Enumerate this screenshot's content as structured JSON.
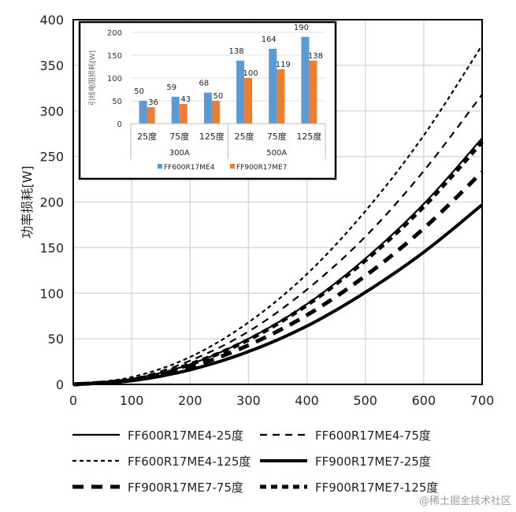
{
  "chart_data": [
    {
      "type": "line",
      "title": "",
      "xlabel": "",
      "ylabel": "功率损耗[W]",
      "xlim": [
        0,
        700
      ],
      "ylim": [
        0,
        400
      ],
      "xticks": [
        "0",
        "100",
        "200",
        "300",
        "400",
        "500",
        "600",
        "700"
      ],
      "yticks": [
        "0",
        "50",
        "100",
        "150",
        "200",
        "250",
        "300",
        "350",
        "400"
      ],
      "grid": true,
      "legend_position": "bottom",
      "x": [
        0,
        100,
        200,
        300,
        400,
        500,
        600,
        700
      ],
      "series": [
        {
          "name": "FF600R17ME4-25度",
          "style": "thin-solid",
          "values": [
            0,
            6,
            22,
            50,
            88,
            138,
            198,
            270
          ]
        },
        {
          "name": "FF600R17ME4-75度",
          "style": "thin-dash",
          "values": [
            0,
            6,
            26,
            58,
            104,
            162,
            234,
            318
          ]
        },
        {
          "name": "FF600R17ME4-125度",
          "style": "thin-short-dash",
          "values": [
            0,
            8,
            30,
            68,
            121,
            190,
            273,
            372
          ]
        },
        {
          "name": "FF900R17ME7-25度",
          "style": "thick-solid",
          "values": [
            0,
            4,
            16,
            36,
            64,
            101,
            145,
            197
          ]
        },
        {
          "name": "FF900R17ME7-75度",
          "style": "thick-long-dash",
          "values": [
            0,
            5,
            19,
            43,
            76,
            119,
            171,
            233
          ]
        },
        {
          "name": "FF900R17ME7-125度",
          "style": "thick-dash",
          "values": [
            0,
            5,
            22,
            49,
            87,
            136,
            195,
            266
          ]
        }
      ]
    },
    {
      "type": "bar",
      "title": "",
      "ylabel": "引线电阻损耗[W]",
      "ylim": [
        0,
        200
      ],
      "yticks": [
        "0",
        "50",
        "100",
        "150",
        "200"
      ],
      "categories": [
        "25度",
        "75度",
        "125度",
        "25度",
        "75度",
        "125度"
      ],
      "groups": [
        "300A",
        "500A"
      ],
      "legend_position": "bottom",
      "series": [
        {
          "name": "FF600R17ME4",
          "color": "#5B9BD5",
          "values": [
            50,
            59,
            68,
            138,
            164,
            190
          ]
        },
        {
          "name": "FF900R17ME7",
          "color": "#ED7D31",
          "values": [
            36,
            43,
            50,
            100,
            119,
            138
          ]
        }
      ]
    }
  ],
  "watermark": "@稀土掘金技术社区"
}
